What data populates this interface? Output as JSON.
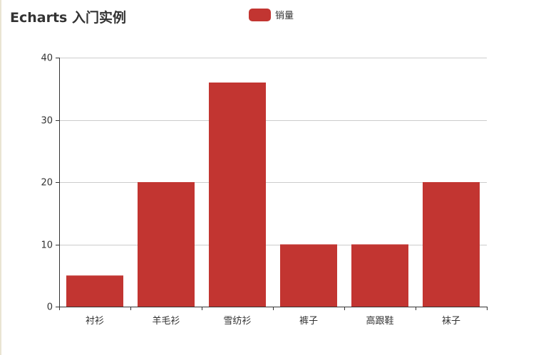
{
  "title": "Echarts 入门实例",
  "legend": {
    "label": "销量",
    "color": "#c23531"
  },
  "chart_data": {
    "type": "bar",
    "title": "Echarts 入门实例",
    "categories": [
      "衬衫",
      "羊毛衫",
      "雪纺衫",
      "裤子",
      "高跟鞋",
      "袜子"
    ],
    "series": [
      {
        "name": "销量",
        "values": [
          5,
          20,
          36,
          10,
          10,
          20
        ],
        "color": "#c23531"
      }
    ],
    "xlabel": "",
    "ylabel": "",
    "ylim": [
      0,
      40
    ],
    "yticks": [
      0,
      10,
      20,
      30,
      40
    ],
    "grid": true,
    "legend_position": "top-center"
  }
}
